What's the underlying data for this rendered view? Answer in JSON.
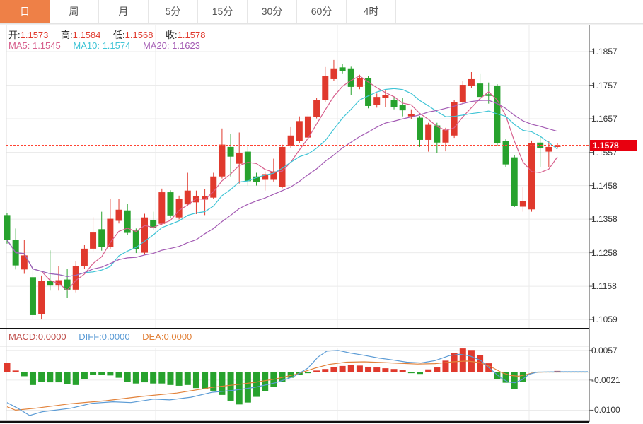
{
  "toolbar": {
    "tabs": [
      {
        "label": "日",
        "active": true
      },
      {
        "label": "周",
        "active": false
      },
      {
        "label": "月",
        "active": false
      },
      {
        "label": "5分",
        "active": false
      },
      {
        "label": "15分",
        "active": false
      },
      {
        "label": "30分",
        "active": false
      },
      {
        "label": "60分",
        "active": false
      },
      {
        "label": "4时",
        "active": false
      }
    ]
  },
  "legend": {
    "open_label": "开:",
    "open": "1.1573",
    "high_label": "高:",
    "high": "1.1584",
    "low_label": "低:",
    "low": "1.1568",
    "close_label": "收:",
    "close": "1.1578",
    "ma5_label": "MA5:",
    "ma5": "1.1545",
    "ma10_label": "MA10:",
    "ma10": "1.1574",
    "ma20_label": "MA20:",
    "ma20": "1.1623"
  },
  "macd_legend": {
    "macd_label": "MACD:",
    "macd": "0.0000",
    "diff_label": "DIFF:",
    "diff": "0.0000",
    "dea_label": "DEA:",
    "dea": "0.0000"
  },
  "price_axis": {
    "labels": [
      "1.1857",
      "1.1757",
      "1.1657",
      "1.1557",
      "1.1458",
      "1.1358",
      "1.1258",
      "1.1158",
      "1.1059"
    ],
    "current": "1.1578"
  },
  "macd_axis": {
    "labels": [
      "0.0057",
      "-0.0021",
      "-0.0100"
    ]
  },
  "colors": {
    "up": "#e0392d",
    "down": "#27a22d",
    "ma5": "#d75f8d",
    "ma10": "#3fc4d6",
    "ma20": "#a45cb4",
    "diff": "#5b9bd5",
    "dea": "#e2823a",
    "dotted_price": "#ff4433",
    "zero_dotted": "#9adee6",
    "badge_bg": "#e8000f",
    "tab_active_bg": "#ee8047",
    "grid": "#ebebeb",
    "axis_dark": "#444",
    "border_black": "#111"
  },
  "chart_data": [
    {
      "type": "candlestick",
      "panel": "price",
      "ylim": [
        1.1034,
        1.1937
      ],
      "y_ticks": [
        1.1857,
        1.1757,
        1.1657,
        1.1557,
        1.1458,
        1.1358,
        1.1258,
        1.1158,
        1.1059
      ],
      "current_price": 1.1578,
      "ma_windows": [
        5,
        10,
        20
      ],
      "up_means": "close>=open (red rising, green falling)",
      "candles": [
        [
          1.137,
          1.1376,
          1.1285,
          1.1296
        ],
        [
          1.1296,
          1.133,
          1.1208,
          1.122
        ],
        [
          1.1208,
          1.1296,
          1.1195,
          1.125
        ],
        [
          1.1185,
          1.1215,
          1.1061,
          1.1072
        ],
        [
          1.1076,
          1.119,
          1.1059,
          1.1175
        ],
        [
          1.1175,
          1.1265,
          1.1145,
          1.116
        ],
        [
          1.116,
          1.1218,
          1.1145,
          1.1176
        ],
        [
          1.1178,
          1.121,
          1.1124,
          1.1148
        ],
        [
          1.1148,
          1.1234,
          1.114,
          1.1218
        ],
        [
          1.1218,
          1.1281,
          1.121,
          1.127
        ],
        [
          1.127,
          1.1364,
          1.1262,
          1.1318
        ],
        [
          1.1328,
          1.138,
          1.1264,
          1.1275
        ],
        [
          1.1275,
          1.1418,
          1.127,
          1.1359
        ],
        [
          1.1353,
          1.1418,
          1.1345,
          1.1386
        ],
        [
          1.1384,
          1.1403,
          1.131,
          1.1317
        ],
        [
          1.1324,
          1.133,
          1.1257,
          1.1269
        ],
        [
          1.1258,
          1.1374,
          1.1252,
          1.1363
        ],
        [
          1.1355,
          1.138,
          1.1326,
          1.1332
        ],
        [
          1.1344,
          1.1449,
          1.134,
          1.1438
        ],
        [
          1.1438,
          1.1444,
          1.136,
          1.1369
        ],
        [
          1.1363,
          1.1428,
          1.1357,
          1.1418
        ],
        [
          1.1402,
          1.1496,
          1.1396,
          1.1443
        ],
        [
          1.1408,
          1.1443,
          1.1373,
          1.1427
        ],
        [
          1.1416,
          1.1447,
          1.137,
          1.1426
        ],
        [
          1.1422,
          1.1496,
          1.1418,
          1.1485
        ],
        [
          1.1485,
          1.1628,
          1.1479,
          1.158
        ],
        [
          1.1573,
          1.1611,
          1.1485,
          1.1544
        ],
        [
          1.1523,
          1.1616,
          1.1464,
          1.1555
        ],
        [
          1.1559,
          1.1574,
          1.1458,
          1.1471
        ],
        [
          1.1485,
          1.1496,
          1.1458,
          1.1468
        ],
        [
          1.1475,
          1.15,
          1.1443,
          1.1492
        ],
        [
          1.1475,
          1.1538,
          1.147,
          1.15
        ],
        [
          1.1454,
          1.158,
          1.145,
          1.1573
        ],
        [
          1.1576,
          1.1632,
          1.157,
          1.1607
        ],
        [
          1.159,
          1.1664,
          1.1585,
          1.165
        ],
        [
          1.1601,
          1.1672,
          1.1595,
          1.1664
        ],
        [
          1.1663,
          1.172,
          1.1658,
          1.1712
        ],
        [
          1.1712,
          1.1811,
          1.1706,
          1.1785
        ],
        [
          1.1775,
          1.1832,
          1.177,
          1.1807
        ],
        [
          1.181,
          1.182,
          1.179,
          1.18
        ],
        [
          1.1807,
          1.1812,
          1.1727,
          1.1752
        ],
        [
          1.1752,
          1.1788,
          1.1745,
          1.1779
        ],
        [
          1.1779,
          1.1785,
          1.1688,
          1.1695
        ],
        [
          1.1699,
          1.1732,
          1.169,
          1.1722
        ],
        [
          1.172,
          1.1742,
          1.1692,
          1.1727
        ],
        [
          1.1712,
          1.1722,
          1.1685,
          1.1691
        ],
        [
          1.1697,
          1.1718,
          1.1664,
          1.1682
        ],
        [
          1.1664,
          1.1685,
          1.1655,
          1.167
        ],
        [
          1.166,
          1.1665,
          1.1573,
          1.1594
        ],
        [
          1.1594,
          1.1645,
          1.1559,
          1.1639
        ],
        [
          1.1637,
          1.1645,
          1.1555,
          1.1586
        ],
        [
          1.1586,
          1.163,
          1.156,
          1.1624
        ],
        [
          1.1607,
          1.1712,
          1.16,
          1.1706
        ],
        [
          1.1706,
          1.177,
          1.17,
          1.1758
        ],
        [
          1.1754,
          1.1796,
          1.1748,
          1.1775
        ],
        [
          1.1762,
          1.179,
          1.1715,
          1.1722
        ],
        [
          1.173,
          1.1765,
          1.1702,
          1.1725
        ],
        [
          1.1754,
          1.176,
          1.1576,
          1.1584
        ],
        [
          1.159,
          1.1596,
          1.1512,
          1.1521
        ],
        [
          1.1542,
          1.1548,
          1.1394,
          1.1397
        ],
        [
          1.1395,
          1.1455,
          1.138,
          1.1412
        ],
        [
          1.1387,
          1.1592,
          1.138,
          1.1584
        ],
        [
          1.1586,
          1.1604,
          1.1513,
          1.1569
        ],
        [
          1.1559,
          1.159,
          1.1513,
          1.1573
        ],
        [
          1.1573,
          1.1584,
          1.1568,
          1.1578
        ]
      ]
    },
    {
      "type": "bar",
      "panel": "macd",
      "ylim": [
        -0.0127,
        0.0064
      ],
      "y_ticks": [
        0.0057,
        -0.0021,
        -0.01
      ],
      "histogram": [
        0.0025,
        0.0004,
        -0.0011,
        -0.0034,
        -0.0025,
        -0.0027,
        -0.0027,
        -0.0031,
        -0.0034,
        -0.0018,
        -0.0007,
        -0.0007,
        -0.0009,
        -0.0015,
        -0.0025,
        -0.003,
        -0.0027,
        -0.003,
        -0.003,
        -0.0034,
        -0.0036,
        -0.0034,
        -0.0042,
        -0.0045,
        -0.0049,
        -0.006,
        -0.0075,
        -0.0085,
        -0.008,
        -0.0065,
        -0.005,
        -0.0038,
        -0.0025,
        -0.0015,
        -0.0008,
        -0.0003,
        0.0004,
        0.0008,
        0.0013,
        0.0016,
        0.0018,
        0.0017,
        0.0014,
        0.0012,
        0.001,
        0.0008,
        0.0005,
        -0.0003,
        -0.0005,
        0.0007,
        0.0012,
        0.003,
        0.005,
        0.0062,
        0.0058,
        0.0044,
        0.0023,
        -0.0018,
        -0.0028,
        -0.0045,
        -0.0025,
        0,
        0,
        0,
        0.0003
      ],
      "diff_line": [
        [
          10,
          -0.008
        ],
        [
          25,
          -0.0095
        ],
        [
          42,
          -0.0114
        ],
        [
          60,
          -0.0104
        ],
        [
          100,
          -0.0095
        ],
        [
          130,
          -0.0082
        ],
        [
          160,
          -0.0078
        ],
        [
          185,
          -0.008
        ],
        [
          217,
          -0.0071
        ],
        [
          240,
          -0.0073
        ],
        [
          270,
          -0.0066
        ],
        [
          300,
          -0.0053
        ],
        [
          330,
          -0.0048
        ],
        [
          360,
          -0.004
        ],
        [
          390,
          -0.0028
        ],
        [
          415,
          -0.0012
        ],
        [
          435,
          0.001
        ],
        [
          450,
          0.004
        ],
        [
          462,
          0.0055
        ],
        [
          478,
          0.0057
        ],
        [
          495,
          0.005
        ],
        [
          515,
          0.0044
        ],
        [
          535,
          0.0037
        ],
        [
          555,
          0.0032
        ],
        [
          575,
          0.0026
        ],
        [
          595,
          0.0024
        ],
        [
          615,
          0.003
        ],
        [
          635,
          0.0043
        ],
        [
          650,
          0.0047
        ],
        [
          665,
          0.0042
        ],
        [
          680,
          0.003
        ],
        [
          695,
          0.0005
        ],
        [
          708,
          -0.0015
        ],
        [
          718,
          -0.0026
        ],
        [
          728,
          -0.0028
        ],
        [
          738,
          -0.002
        ],
        [
          748,
          -0.0006
        ],
        [
          760,
          0.0
        ],
        [
          790,
          0.0001
        ],
        [
          831,
          0.0001
        ]
      ],
      "dea_line": [
        [
          10,
          -0.0091
        ],
        [
          22,
          -0.01
        ],
        [
          50,
          -0.0095
        ],
        [
          100,
          -0.0083
        ],
        [
          150,
          -0.0075
        ],
        [
          200,
          -0.0064
        ],
        [
          250,
          -0.0055
        ],
        [
          300,
          -0.004
        ],
        [
          330,
          -0.0034
        ],
        [
          360,
          -0.0027
        ],
        [
          390,
          -0.0018
        ],
        [
          420,
          -0.0005
        ],
        [
          445,
          0.001
        ],
        [
          465,
          0.002
        ],
        [
          490,
          0.0026
        ],
        [
          515,
          0.0027
        ],
        [
          540,
          0.0025
        ],
        [
          565,
          0.0023
        ],
        [
          590,
          0.0021
        ],
        [
          615,
          0.0022
        ],
        [
          640,
          0.0027
        ],
        [
          660,
          0.0029
        ],
        [
          678,
          0.0025
        ],
        [
          695,
          0.0013
        ],
        [
          710,
          -0.0002
        ],
        [
          722,
          -0.0009
        ],
        [
          733,
          -0.0011
        ],
        [
          743,
          -0.0007
        ],
        [
          755,
          -0.0001
        ],
        [
          770,
          0.0
        ],
        [
          831,
          0.0
        ]
      ],
      "flat_zero_from_x": 746
    }
  ]
}
